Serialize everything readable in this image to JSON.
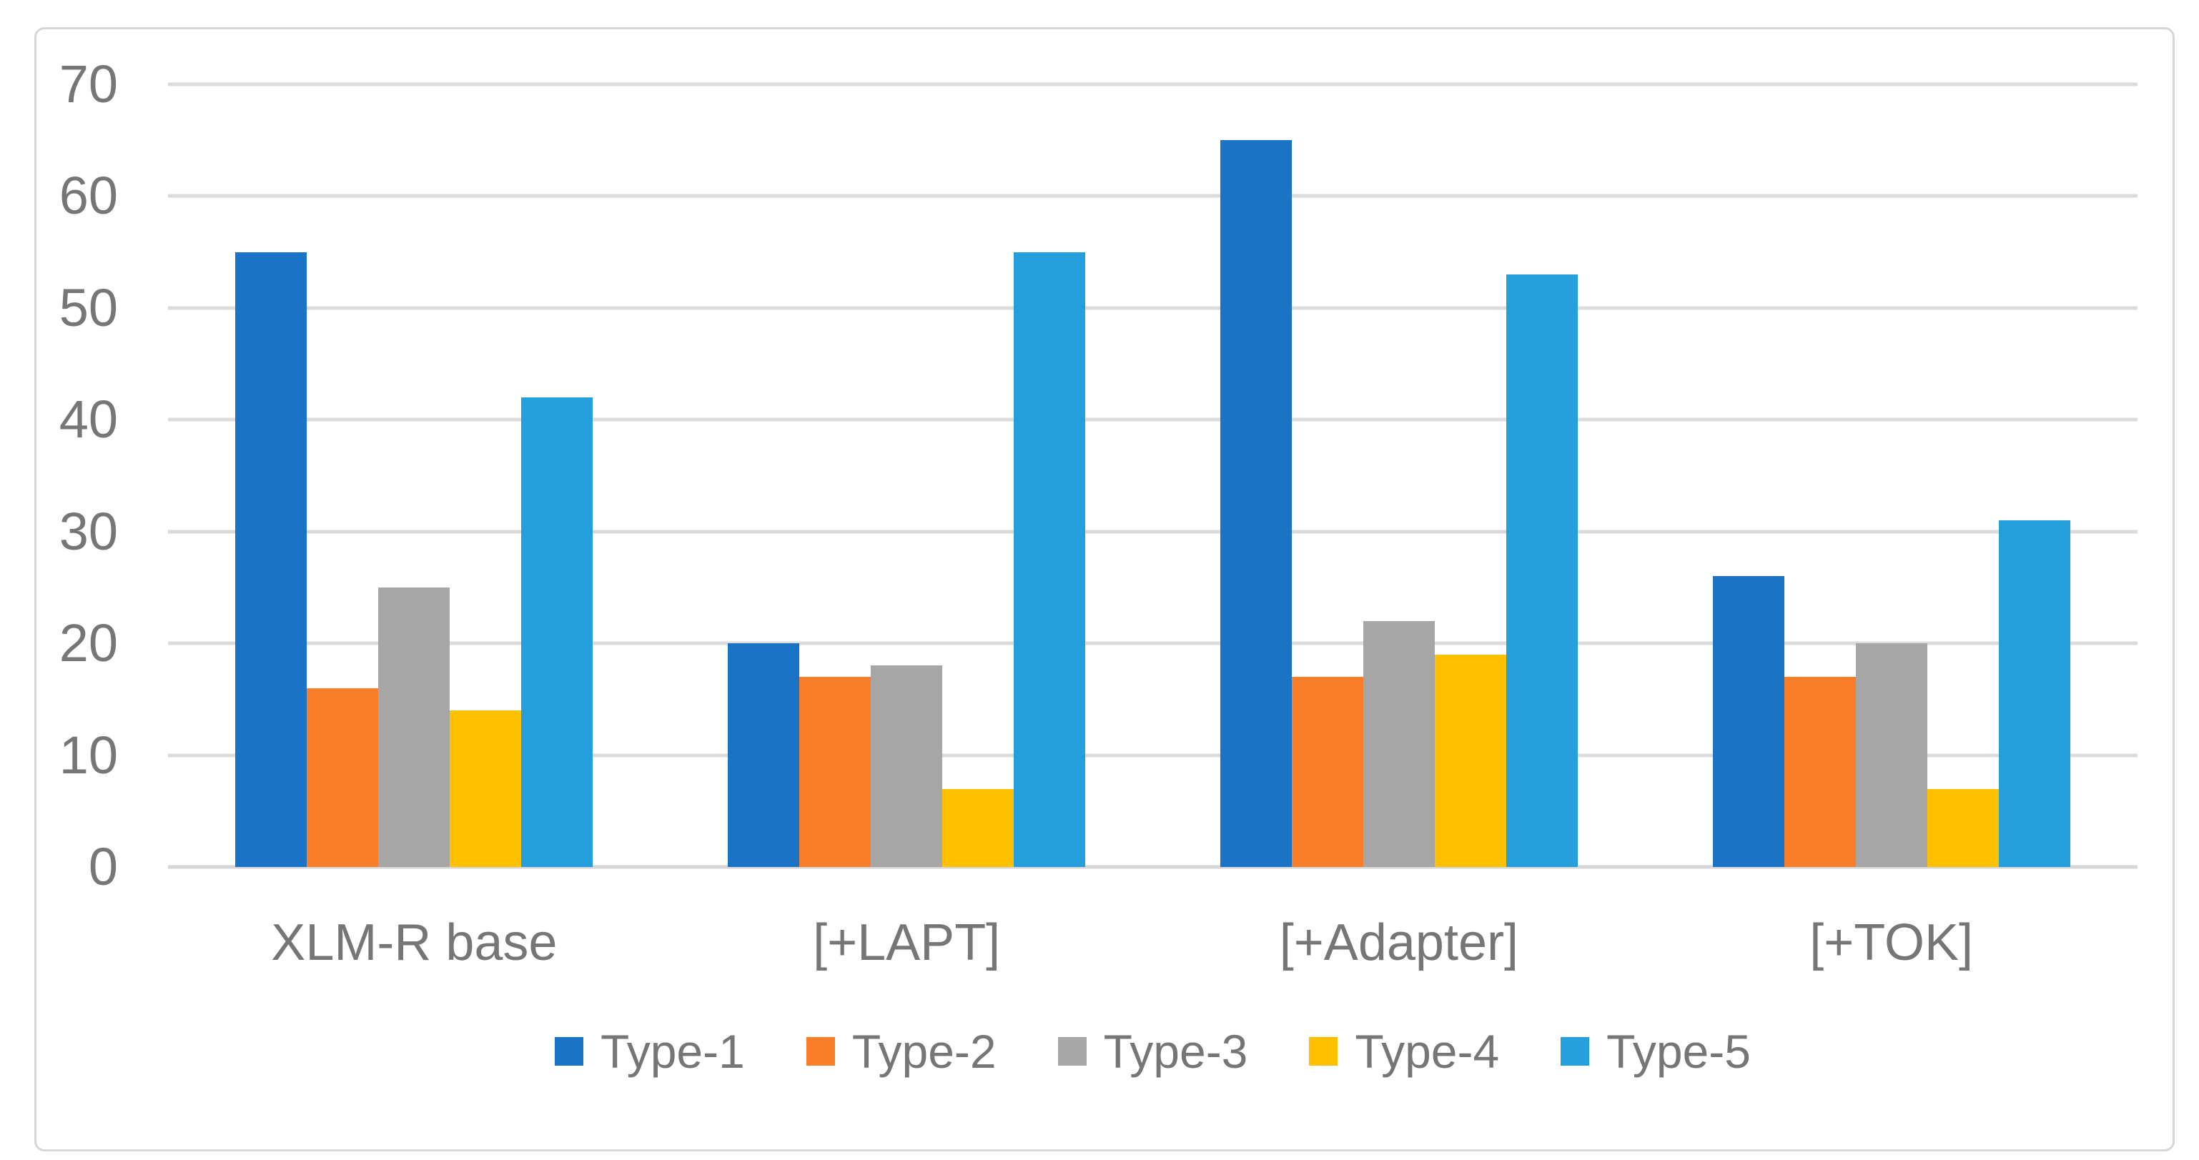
{
  "chart_data": {
    "type": "bar",
    "title": "",
    "xlabel": "",
    "ylabel": "",
    "categories": [
      "XLM-R base",
      "[+LAPT]",
      "[+Adapter]",
      "[+TOK]"
    ],
    "series": [
      {
        "name": "Type-1",
        "color": "#1B73C8",
        "values": [
          55,
          20,
          65,
          26
        ]
      },
      {
        "name": "Type-2",
        "color": "#FB7D29",
        "values": [
          16,
          17,
          17,
          17
        ]
      },
      {
        "name": "Type-3",
        "color": "#A6A6A6",
        "values": [
          25,
          18,
          22,
          20
        ]
      },
      {
        "name": "Type-4",
        "color": "#FFC000",
        "values": [
          14,
          7,
          19,
          7
        ]
      },
      {
        "name": "Type-5",
        "color": "#249FDB",
        "values": [
          42,
          55,
          53,
          31
        ]
      }
    ],
    "ylim": [
      0,
      70
    ],
    "yticks": [
      "0",
      "10",
      "20",
      "30",
      "40",
      "50",
      "60",
      "70"
    ],
    "ytick_interval": 10,
    "grid": true,
    "legend_position": "bottom"
  },
  "style_colors": {
    "gridline": "#DBDBDB",
    "axis_line": "#D6D6D6",
    "axis_text": "#767676",
    "frame_border": "#D6D6D6",
    "background": "#FFFFFF"
  }
}
